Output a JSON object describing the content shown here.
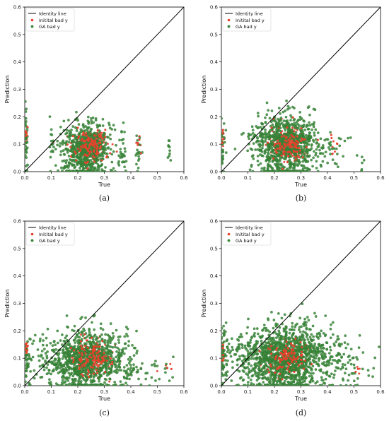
{
  "colors": {
    "identity": "#000000",
    "initial": "#e8412c",
    "ga": "#3a8a3a",
    "ga_edge": "#2f6e2f"
  },
  "legend": [
    "Identity line",
    "Initital bad y",
    "GA bad y"
  ],
  "chart_data": [
    {
      "type": "scatter",
      "caption": "(a)",
      "xlabel": "True",
      "ylabel": "Prediction",
      "xlim": [
        0.0,
        0.6
      ],
      "ylim": [
        0.0,
        0.6
      ],
      "xticks": [
        "0.0",
        "0.1",
        "0.2",
        "0.3",
        "0.4",
        "0.5",
        "0.6"
      ],
      "yticks": [
        "0.0",
        "0.1",
        "0.2",
        "0.3",
        "0.4",
        "0.5",
        "0.6"
      ],
      "legend_position": "top-left",
      "identity_line": [
        [
          0.0,
          0.0
        ],
        [
          0.6,
          0.6
        ]
      ],
      "series": [
        {
          "name": "Initital bad y",
          "color": "#e8412c",
          "clusters": [
            {
              "x_mean": 0.25,
              "x_sd": 0.035,
              "y_mean": 0.095,
              "y_sd": 0.03,
              "n": 150
            },
            {
              "x_mean": 0.005,
              "x_sd": 0.003,
              "y_mean": 0.13,
              "y_sd": 0.02,
              "n": 8
            },
            {
              "x_mean": 0.43,
              "x_sd": 0.005,
              "y_mean": 0.1,
              "y_sd": 0.02,
              "n": 5
            }
          ]
        },
        {
          "name": "GA bad y",
          "color": "#3a8a3a",
          "clusters": [
            {
              "x_mean": 0.23,
              "x_sd": 0.045,
              "y_mean": 0.08,
              "y_sd": 0.05,
              "n": 650
            },
            {
              "x_mean": 0.005,
              "x_sd": 0.004,
              "y_mean": 0.11,
              "y_sd": 0.07,
              "n": 35
            },
            {
              "x_mean": 0.1,
              "x_sd": 0.005,
              "y_mean": 0.09,
              "y_sd": 0.05,
              "n": 12
            },
            {
              "x_mean": 0.37,
              "x_sd": 0.01,
              "y_mean": 0.08,
              "y_sd": 0.04,
              "n": 25
            },
            {
              "x_mean": 0.43,
              "x_sd": 0.007,
              "y_mean": 0.07,
              "y_sd": 0.04,
              "n": 18
            },
            {
              "x_mean": 0.545,
              "x_sd": 0.004,
              "y_mean": 0.08,
              "y_sd": 0.05,
              "n": 10
            }
          ]
        }
      ]
    },
    {
      "type": "scatter",
      "caption": "(b)",
      "xlabel": "True",
      "ylabel": "Prediction",
      "xlim": [
        0.0,
        0.6
      ],
      "ylim": [
        0.0,
        0.6
      ],
      "xticks": [
        "0.0",
        "0.1",
        "0.2",
        "0.3",
        "0.4",
        "0.5",
        "0.6"
      ],
      "yticks": [
        "0.0",
        "0.1",
        "0.2",
        "0.3",
        "0.4",
        "0.5",
        "0.6"
      ],
      "legend_position": "top-left",
      "identity_line": [
        [
          0.0,
          0.0
        ],
        [
          0.6,
          0.6
        ]
      ],
      "series": [
        {
          "name": "Initital bad y",
          "color": "#e8412c",
          "clusters": [
            {
              "x_mean": 0.25,
              "x_sd": 0.035,
              "y_mean": 0.1,
              "y_sd": 0.03,
              "n": 150
            },
            {
              "x_mean": 0.005,
              "x_sd": 0.003,
              "y_mean": 0.13,
              "y_sd": 0.02,
              "n": 8
            },
            {
              "x_mean": 0.42,
              "x_sd": 0.01,
              "y_mean": 0.1,
              "y_sd": 0.02,
              "n": 5
            }
          ]
        },
        {
          "name": "GA bad y",
          "color": "#3a8a3a",
          "clusters": [
            {
              "x_mean": 0.24,
              "x_sd": 0.06,
              "y_mean": 0.1,
              "y_sd": 0.055,
              "n": 900
            },
            {
              "x_mean": 0.005,
              "x_sd": 0.005,
              "y_mean": 0.08,
              "y_sd": 0.05,
              "n": 30
            },
            {
              "x_mean": 0.4,
              "x_sd": 0.04,
              "y_mean": 0.08,
              "y_sd": 0.04,
              "n": 40
            },
            {
              "x_mean": 0.53,
              "x_sd": 0.015,
              "y_mean": 0.05,
              "y_sd": 0.03,
              "n": 6
            }
          ]
        }
      ]
    },
    {
      "type": "scatter",
      "caption": "(c)",
      "xlabel": "True",
      "ylabel": "Prediction",
      "xlim": [
        0.0,
        0.6
      ],
      "ylim": [
        0.0,
        0.6
      ],
      "xticks": [
        "0.0",
        "0.1",
        "0.2",
        "0.3",
        "0.4",
        "0.5",
        "0.6"
      ],
      "yticks": [
        "0.0",
        "0.1",
        "0.2",
        "0.3",
        "0.4",
        "0.5",
        "0.6"
      ],
      "legend_position": "top-left",
      "identity_line": [
        [
          0.0,
          0.0
        ],
        [
          0.6,
          0.6
        ]
      ],
      "series": [
        {
          "name": "Initital bad y",
          "color": "#e8412c",
          "clusters": [
            {
              "x_mean": 0.25,
              "x_sd": 0.035,
              "y_mean": 0.1,
              "y_sd": 0.03,
              "n": 150
            },
            {
              "x_mean": 0.005,
              "x_sd": 0.003,
              "y_mean": 0.13,
              "y_sd": 0.02,
              "n": 8
            },
            {
              "x_mean": 0.53,
              "x_sd": 0.01,
              "y_mean": 0.07,
              "y_sd": 0.01,
              "n": 3
            }
          ]
        },
        {
          "name": "GA bad y",
          "color": "#3a8a3a",
          "clusters": [
            {
              "x_mean": 0.23,
              "x_sd": 0.08,
              "y_mean": 0.09,
              "y_sd": 0.055,
              "n": 1000
            },
            {
              "x_mean": 0.01,
              "x_sd": 0.008,
              "y_mean": 0.09,
              "y_sd": 0.06,
              "n": 35
            },
            {
              "x_mean": 0.45,
              "x_sd": 0.06,
              "y_mean": 0.06,
              "y_sd": 0.035,
              "n": 40
            }
          ]
        }
      ]
    },
    {
      "type": "scatter",
      "caption": "(d)",
      "xlabel": "True",
      "ylabel": "Prediction",
      "xlim": [
        0.0,
        0.6
      ],
      "ylim": [
        0.0,
        0.6
      ],
      "xticks": [
        "0.0",
        "0.1",
        "0.2",
        "0.3",
        "0.4",
        "0.5",
        "0.6"
      ],
      "yticks": [
        "0.0",
        "0.1",
        "0.2",
        "0.3",
        "0.4",
        "0.5",
        "0.6"
      ],
      "legend_position": "top-left",
      "identity_line": [
        [
          0.0,
          0.0
        ],
        [
          0.6,
          0.6
        ]
      ],
      "series": [
        {
          "name": "Initital bad y",
          "color": "#e8412c",
          "clusters": [
            {
              "x_mean": 0.25,
              "x_sd": 0.035,
              "y_mean": 0.1,
              "y_sd": 0.03,
              "n": 150
            },
            {
              "x_mean": 0.005,
              "x_sd": 0.003,
              "y_mean": 0.12,
              "y_sd": 0.02,
              "n": 8
            },
            {
              "x_mean": 0.51,
              "x_sd": 0.01,
              "y_mean": 0.06,
              "y_sd": 0.01,
              "n": 3
            }
          ]
        },
        {
          "name": "GA bad y",
          "color": "#3a8a3a",
          "clusters": [
            {
              "x_mean": 0.24,
              "x_sd": 0.09,
              "y_mean": 0.1,
              "y_sd": 0.06,
              "n": 1300
            },
            {
              "x_mean": 0.01,
              "x_sd": 0.008,
              "y_mean": 0.1,
              "y_sd": 0.07,
              "n": 45
            },
            {
              "x_mean": 0.46,
              "x_sd": 0.06,
              "y_mean": 0.07,
              "y_sd": 0.04,
              "n": 70
            }
          ]
        }
      ]
    }
  ]
}
